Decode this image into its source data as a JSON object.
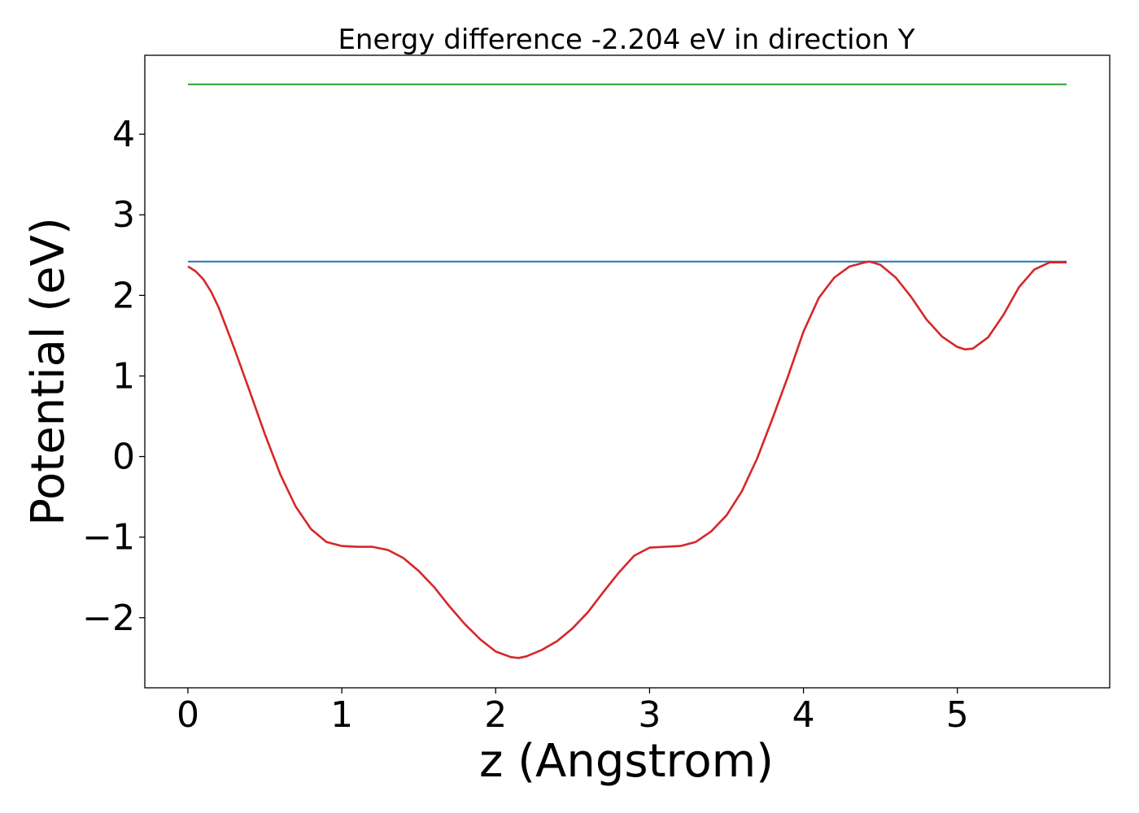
{
  "chart_data": {
    "type": "line",
    "title": "Energy difference -2.204 eV in direction Y",
    "xlabel": "z (Angstrom)",
    "ylabel": "Potential (eV)",
    "xlim": [
      -0.28,
      5.99
    ],
    "ylim": [
      -2.87,
      4.98
    ],
    "xticks": [
      0,
      1,
      2,
      3,
      4,
      5
    ],
    "xtick_labels": [
      "0",
      "1",
      "2",
      "3",
      "4",
      "5"
    ],
    "yticks": [
      -2,
      -1,
      0,
      1,
      2,
      3,
      4
    ],
    "ytick_labels": [
      "−2",
      "−1",
      "0",
      "1",
      "2",
      "3",
      "4"
    ],
    "grid": false,
    "series": [
      {
        "color": "#2ca02c",
        "x": [
          0.0,
          5.71
        ],
        "y": [
          4.62,
          4.62
        ]
      },
      {
        "color": "#1f77b4",
        "x": [
          0.0,
          5.71
        ],
        "y": [
          2.42,
          2.42
        ]
      },
      {
        "color": "#d62728",
        "x": [
          0.0,
          0.05,
          0.1,
          0.15,
          0.2,
          0.25,
          0.3,
          0.4,
          0.5,
          0.6,
          0.7,
          0.8,
          0.9,
          1.0,
          1.1,
          1.2,
          1.3,
          1.4,
          1.5,
          1.6,
          1.7,
          1.8,
          1.9,
          2.0,
          2.1,
          2.15,
          2.2,
          2.3,
          2.4,
          2.5,
          2.6,
          2.7,
          2.8,
          2.9,
          3.0,
          3.1,
          3.2,
          3.3,
          3.4,
          3.5,
          3.6,
          3.7,
          3.8,
          3.9,
          4.0,
          4.1,
          4.2,
          4.3,
          4.4,
          4.43,
          4.5,
          4.6,
          4.7,
          4.8,
          4.9,
          5.0,
          5.05,
          5.1,
          5.2,
          5.3,
          5.4,
          5.5,
          5.6,
          5.71
        ],
        "y": [
          2.36,
          2.3,
          2.2,
          2.05,
          1.85,
          1.6,
          1.35,
          0.82,
          0.28,
          -0.22,
          -0.62,
          -0.9,
          -1.06,
          -1.11,
          -1.12,
          -1.12,
          -1.16,
          -1.26,
          -1.42,
          -1.62,
          -1.86,
          -2.08,
          -2.27,
          -2.42,
          -2.49,
          -2.5,
          -2.48,
          -2.4,
          -2.29,
          -2.13,
          -1.93,
          -1.68,
          -1.44,
          -1.23,
          -1.13,
          -1.12,
          -1.11,
          -1.06,
          -0.93,
          -0.73,
          -0.43,
          -0.02,
          0.48,
          1.0,
          1.55,
          1.97,
          2.22,
          2.36,
          2.41,
          2.42,
          2.38,
          2.22,
          1.98,
          1.7,
          1.49,
          1.36,
          1.33,
          1.34,
          1.48,
          1.76,
          2.1,
          2.32,
          2.41,
          2.41
        ]
      }
    ]
  }
}
